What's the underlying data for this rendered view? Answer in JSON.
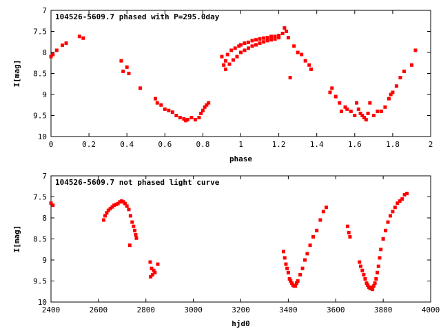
{
  "colors": {
    "marker": "#ff0000",
    "axis": "#000000",
    "background": "#ffffff"
  },
  "chart_data": [
    {
      "type": "scatter",
      "title": "104526-5609.7 phased with P=295.0day",
      "xlabel": "phase",
      "ylabel": "I[mag]",
      "xlim": [
        0,
        2
      ],
      "ylim": [
        7,
        10
      ],
      "y_inverted": true,
      "grid": false,
      "legend": "none",
      "xticks": [
        0,
        0.2,
        0.4,
        0.6,
        0.8,
        1,
        1.2,
        1.4,
        1.6,
        1.8,
        2
      ],
      "xtick_labels": [
        "0",
        "0.2",
        "0.4",
        "0.6",
        "0.8",
        "1",
        "1.2",
        "1.4",
        "1.6",
        "1.8",
        "2"
      ],
      "yticks": [
        7,
        7.5,
        8,
        8.5,
        9,
        9.5,
        10
      ],
      "ytick_labels": [
        "7",
        "7.5",
        "8",
        "8.5",
        "9",
        "9.5",
        "10"
      ],
      "series": [
        {
          "x": [
            0.0,
            0.01,
            0.03,
            0.06,
            0.08,
            0.15,
            0.17,
            0.37,
            0.38,
            0.4,
            0.41,
            0.47,
            0.55,
            0.56,
            0.58,
            0.6,
            0.62,
            0.64,
            0.66,
            0.68,
            0.7,
            0.71,
            0.72,
            0.74,
            0.76,
            0.78,
            0.79,
            0.8,
            0.81,
            0.82,
            0.83,
            0.9,
            0.91,
            0.92,
            0.93,
            0.95,
            0.97,
            0.99,
            1.0,
            1.02,
            1.04,
            1.06,
            1.08,
            1.1,
            1.12,
            1.14,
            1.16,
            1.18,
            1.2,
            1.22,
            1.23,
            1.24,
            1.25,
            1.26,
            1.28,
            1.3,
            1.32,
            1.34,
            1.36,
            1.37,
            1.47,
            1.48,
            1.5,
            1.52,
            1.53,
            1.55,
            1.56,
            1.58,
            1.6,
            1.61,
            1.62,
            1.63,
            1.64,
            1.65,
            1.66,
            1.67,
            1.68,
            1.7,
            1.72,
            1.74,
            1.76,
            1.78,
            1.79,
            1.8,
            1.82,
            1.84,
            1.86,
            1.9,
            1.92,
            0.92,
            0.94,
            0.96,
            0.98,
            1.0,
            1.02,
            1.04,
            1.06,
            1.08,
            1.1,
            1.12,
            1.14,
            1.16,
            1.18,
            1.2
          ],
          "y": [
            8.1,
            8.05,
            7.95,
            7.83,
            7.78,
            7.62,
            7.66,
            8.2,
            8.45,
            8.35,
            8.5,
            8.85,
            9.1,
            9.2,
            9.25,
            9.35,
            9.38,
            9.42,
            9.5,
            9.55,
            9.58,
            9.62,
            9.6,
            9.55,
            9.6,
            9.55,
            9.45,
            9.38,
            9.3,
            9.25,
            9.2,
            8.1,
            8.3,
            8.2,
            8.05,
            7.95,
            7.9,
            7.85,
            7.82,
            7.78,
            7.76,
            7.72,
            7.7,
            7.68,
            7.66,
            7.65,
            7.62,
            7.62,
            7.6,
            7.55,
            7.42,
            7.5,
            7.65,
            8.6,
            7.85,
            8.0,
            8.05,
            8.2,
            8.3,
            8.4,
            8.95,
            8.85,
            9.05,
            9.2,
            9.4,
            9.3,
            9.35,
            9.4,
            9.5,
            9.2,
            9.35,
            9.45,
            9.5,
            9.55,
            9.6,
            9.45,
            9.2,
            9.5,
            9.4,
            9.4,
            9.3,
            9.1,
            9.0,
            8.95,
            8.8,
            8.6,
            8.45,
            8.3,
            7.95,
            8.4,
            8.28,
            8.18,
            8.1,
            8.0,
            7.95,
            7.9,
            7.85,
            7.82,
            7.78,
            7.75,
            7.72,
            7.7,
            7.68,
            7.65
          ]
        }
      ]
    },
    {
      "type": "scatter",
      "title": "104526-5609.7 not phased light curve",
      "xlabel": "hjd0",
      "ylabel": "I[mag]",
      "xlim": [
        2400,
        4000
      ],
      "ylim": [
        7,
        10
      ],
      "y_inverted": true,
      "grid": false,
      "legend": "none",
      "xticks": [
        2400,
        2600,
        2800,
        3000,
        3200,
        3400,
        3600,
        3800,
        4000
      ],
      "xtick_labels": [
        "2400",
        "2600",
        "2800",
        "3000",
        "3200",
        "3400",
        "3600",
        "3800",
        "4000"
      ],
      "yticks": [
        7,
        7.5,
        8,
        8.5,
        9,
        9.5,
        10
      ],
      "ytick_labels": [
        "7",
        "7.5",
        "8",
        "8.5",
        "9",
        "9.5",
        "10"
      ],
      "series": [
        {
          "x": [
            2400,
            2408,
            2622,
            2628,
            2635,
            2642,
            2650,
            2658,
            2666,
            2674,
            2682,
            2690,
            2698,
            2705,
            2712,
            2720,
            2728,
            2735,
            2742,
            2748,
            2753,
            2757,
            2760,
            2732,
            2818,
            2820,
            2824,
            2828,
            2833,
            2838,
            2850,
            3380,
            3385,
            3390,
            3395,
            3400,
            3405,
            3410,
            3415,
            3420,
            3425,
            3430,
            3435,
            3440,
            3450,
            3460,
            3470,
            3480,
            3492,
            3505,
            3520,
            3535,
            3548,
            3560,
            3650,
            3655,
            3660,
            3700,
            3705,
            3712,
            3718,
            3724,
            3730,
            3735,
            3740,
            3745,
            3750,
            3755,
            3760,
            3765,
            3770,
            3775,
            3780,
            3785,
            3790,
            3800,
            3810,
            3820,
            3830,
            3840,
            3850,
            3860,
            3870,
            3880,
            3890,
            3900
          ],
          "y": [
            7.65,
            7.7,
            8.05,
            7.95,
            7.88,
            7.82,
            7.78,
            7.74,
            7.7,
            7.68,
            7.66,
            7.62,
            7.6,
            7.62,
            7.66,
            7.72,
            7.8,
            7.95,
            8.1,
            8.2,
            8.3,
            8.4,
            8.48,
            8.65,
            9.05,
            9.4,
            9.2,
            9.35,
            9.25,
            9.3,
            9.1,
            8.8,
            8.95,
            9.1,
            9.2,
            9.3,
            9.45,
            9.5,
            9.55,
            9.6,
            9.62,
            9.62,
            9.55,
            9.5,
            9.35,
            9.2,
            9.0,
            8.85,
            8.65,
            8.45,
            8.3,
            8.05,
            7.85,
            7.75,
            8.2,
            8.35,
            8.45,
            9.05,
            9.15,
            9.25,
            9.35,
            9.45,
            9.55,
            9.6,
            9.65,
            9.68,
            9.65,
            9.7,
            9.62,
            9.55,
            9.45,
            9.3,
            9.15,
            8.95,
            8.75,
            8.5,
            8.3,
            8.1,
            7.95,
            7.85,
            7.75,
            7.65,
            7.6,
            7.55,
            7.45,
            7.42
          ]
        }
      ]
    }
  ]
}
